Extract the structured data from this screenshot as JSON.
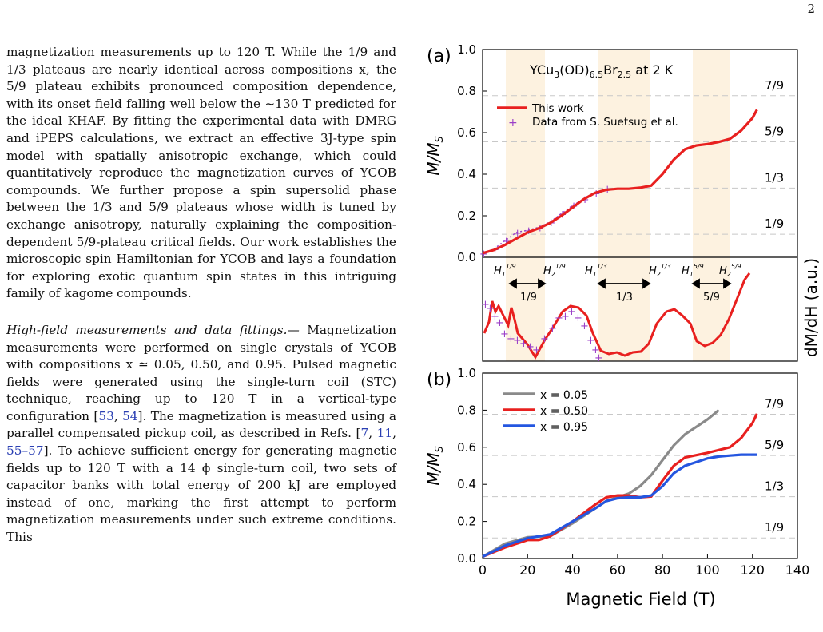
{
  "page_number": "2",
  "text": {
    "p1": "magnetization measurements up to 120 T. While the 1/9 and 1/3 plateaus are nearly identical across compositions x, the 5/9 plateau exhibits pronounced composition dependence, with its onset field falling well below the ~130 T predicted for the ideal KHAF. By fitting the experimental data with DMRG and iPEPS calculations, we extract an effective 3J-type spin model with spatially anisotropic exchange, which could quantitatively reproduce the magnetization curves of YCOB compounds. We further propose a spin supersolid phase between the 1/3 and 5/9 plateaus whose width is tuned by exchange anisotropy, naturally explaining the composition-dependent 5/9-plateau critical fields. Our work establishes the microscopic spin Hamiltonian for YCOB and lays a foundation for exploring exotic quantum spin states in this intriguing family of kagome compounds.",
    "p2_lead": "High-field measurements and data fittings.—",
    "p2_a": " Magnetization measurements were performed on single crystals of YCOB with compositions x ≃ 0.05, 0.50, and 0.95. Pulsed magnetic fields were generated using the single-turn coil (STC) technique, reaching up to 120 T in a vertical-type configuration [",
    "c1": "53",
    "c2": "54",
    "p2_b": "]. The magnetization is measured using a parallel compensated pickup coil, as described in Refs. [",
    "c3": "7",
    "c4": "11",
    "c5": "55–57",
    "p2_c": "]. To achieve sufficient energy for generating magnetic fields up to 120 T with a 14 ϕ single-turn coil, two sets of capacitor banks with total energy of 200 kJ are employed instead of one, marking the first attempt to perform magnetization measurements under such extreme conditions. This"
  },
  "figure": {
    "panel_a": {
      "label": "(a)",
      "title": "YCu3(OD)6.5Br2.5 at 2 K",
      "ylabel": "M/MS",
      "ylabel_right": "dM/dH (a.u.)",
      "yticks": [
        "0.0",
        "0.2",
        "0.4",
        "0.6",
        "0.8",
        "1.0"
      ],
      "plateau_labels": [
        "1/9",
        "1/3",
        "5/9",
        "7/9"
      ],
      "legend": [
        "This work",
        "Data from S. Suetsug et al."
      ],
      "critical_labels": [
        "H1 1/9",
        "H2 1/9",
        "H1 1/3",
        "H2 1/3",
        "H1 5/9",
        "H2 5/9"
      ],
      "arrow_labels": [
        "1/9",
        "1/3",
        "5/9"
      ]
    },
    "panel_b": {
      "label": "(b)",
      "ylabel": "M/MS",
      "xlabel": "Magnetic Field (T)",
      "yticks": [
        "0.0",
        "0.2",
        "0.4",
        "0.6",
        "0.8",
        "1.0"
      ],
      "xticks": [
        "0",
        "20",
        "40",
        "60",
        "80",
        "100",
        "120",
        "140"
      ],
      "plateau_labels": [
        "1/9",
        "1/3",
        "5/9",
        "7/9"
      ],
      "legend": [
        "x = 0.05",
        "x = 0.50",
        "x = 0.95"
      ]
    },
    "colors": {
      "this_work": "#e8201f",
      "suetsug": "#9b3fc8",
      "x005": "#8a8a8a",
      "x050": "#e8201f",
      "x095": "#2456e0",
      "band": "#fdf2e0"
    }
  },
  "chart_data": [
    {
      "type": "line",
      "title": "YCu3(OD)6.5Br2.5 at 2 K",
      "ylabel": "M/MS",
      "xlim": [
        0,
        140
      ],
      "ylim": [
        0,
        1.0
      ],
      "series": [
        {
          "name": "This work",
          "x": [
            0,
            5,
            10,
            15,
            20,
            25,
            30,
            35,
            40,
            45,
            50,
            55,
            60,
            65,
            70,
            75,
            80,
            85,
            90,
            95,
            100,
            105,
            110,
            115,
            120,
            122
          ],
          "y": [
            0.02,
            0.035,
            0.06,
            0.09,
            0.12,
            0.14,
            0.165,
            0.2,
            0.24,
            0.28,
            0.31,
            0.325,
            0.33,
            0.33,
            0.335,
            0.345,
            0.4,
            0.47,
            0.52,
            0.538,
            0.545,
            0.555,
            0.57,
            0.61,
            0.67,
            0.71
          ]
        },
        {
          "name": "Data from S. Suetsug et al.",
          "x": [
            0,
            5,
            10,
            15,
            20,
            25,
            30,
            35,
            40,
            45,
            50,
            55
          ],
          "y": [
            0.02,
            0.04,
            0.08,
            0.12,
            0.13,
            0.145,
            0.17,
            0.21,
            0.25,
            0.28,
            0.31,
            0.33
          ]
        }
      ]
    },
    {
      "type": "line",
      "ylabel": "M/MS",
      "xlabel": "Magnetic Field (T)",
      "xlim": [
        0,
        140
      ],
      "ylim": [
        0,
        1.0
      ],
      "series": [
        {
          "name": "x = 0.05",
          "x": [
            0,
            10,
            20,
            30,
            40,
            50,
            55,
            60,
            65,
            70,
            75,
            80,
            85,
            90,
            95,
            100,
            105
          ],
          "y": [
            0.01,
            0.08,
            0.115,
            0.12,
            0.19,
            0.27,
            0.31,
            0.33,
            0.35,
            0.39,
            0.45,
            0.53,
            0.61,
            0.67,
            0.71,
            0.75,
            0.8
          ]
        },
        {
          "name": "x = 0.50",
          "x": [
            0,
            10,
            20,
            25,
            30,
            40,
            50,
            55,
            60,
            65,
            70,
            75,
            80,
            85,
            90,
            100,
            110,
            115,
            120,
            122
          ],
          "y": [
            0.01,
            0.06,
            0.1,
            0.1,
            0.12,
            0.2,
            0.29,
            0.33,
            0.34,
            0.34,
            0.33,
            0.335,
            0.42,
            0.5,
            0.545,
            0.57,
            0.6,
            0.65,
            0.73,
            0.78
          ]
        },
        {
          "name": "x = 0.95",
          "x": [
            0,
            10,
            20,
            30,
            40,
            50,
            55,
            60,
            65,
            70,
            75,
            80,
            85,
            90,
            95,
            100,
            105,
            110,
            115,
            120,
            122
          ],
          "y": [
            0.01,
            0.07,
            0.11,
            0.13,
            0.2,
            0.27,
            0.31,
            0.325,
            0.33,
            0.33,
            0.34,
            0.39,
            0.46,
            0.5,
            0.52,
            0.54,
            0.55,
            0.555,
            0.56,
            0.56,
            0.56
          ]
        }
      ]
    }
  ]
}
